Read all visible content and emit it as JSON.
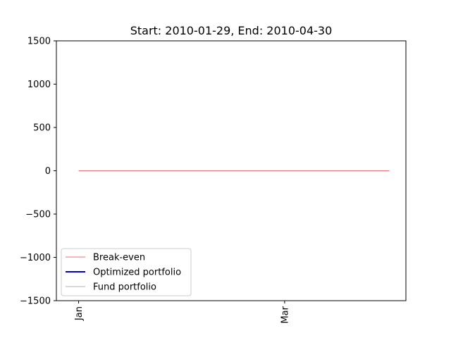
{
  "chart_data": {
    "type": "line",
    "title": "Start: 2010-01-29, End: 2010-04-30",
    "xlabel": "",
    "ylabel": "",
    "ylim": [
      -1500,
      1500
    ],
    "y_ticks": [
      -1500,
      -1000,
      -500,
      0,
      500,
      1000,
      1500
    ],
    "y_tick_labels": [
      "−1500",
      "−1000",
      "−500",
      "0",
      "500",
      "1000",
      "1500"
    ],
    "xlim": [
      "2010-01-29",
      "2010-04-30"
    ],
    "x_ticks": [
      {
        "date": "2010-01-31",
        "label": "Jan"
      },
      {
        "date": "2010-03-31",
        "label": "Mar"
      }
    ],
    "series": [
      {
        "name": "Break-even",
        "color": "#e0404a",
        "x": [
          "2010-01-31",
          "2010-04-30"
        ],
        "values": [
          0,
          0
        ]
      },
      {
        "name": "Optimized portfolio",
        "color": "#0000cc",
        "x": [],
        "values": []
      },
      {
        "name": "Fund portfolio",
        "color": "#999999",
        "x": [],
        "values": []
      }
    ],
    "grid": false,
    "legend": "lower-left"
  }
}
